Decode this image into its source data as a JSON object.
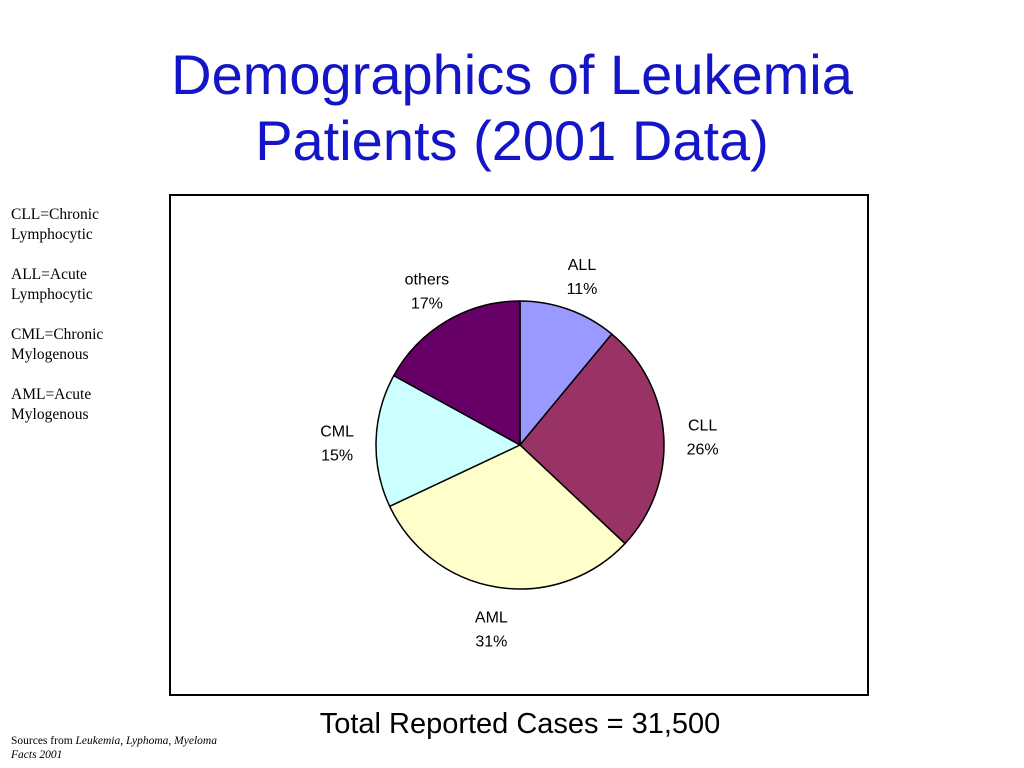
{
  "slide": {
    "title_line1": "Demographics of Leukemia",
    "title_line2": "Patients (2001 Data)"
  },
  "glossary": [
    {
      "line1": "CLL=Chronic",
      "line2": "Lymphocytic"
    },
    {
      "line1": "ALL=Acute",
      "line2": "Lymphocytic"
    },
    {
      "line1": "CML=Chronic",
      "line2": "Mylogenous"
    },
    {
      "line1": "AML=Acute",
      "line2": "Mylogenous"
    }
  ],
  "total_text": "Total Reported Cases = 31,500",
  "sources": {
    "prefix": "Sources from ",
    "citation": "Leukemia, Lyphoma, Myeloma Facts 2001"
  },
  "chart_data": {
    "type": "pie",
    "categories": [
      "ALL",
      "CLL",
      "AML",
      "CML",
      "others"
    ],
    "values": [
      11,
      26,
      31,
      15,
      17
    ],
    "value_labels": [
      "11%",
      "26%",
      "31%",
      "15%",
      "17%"
    ],
    "colors": [
      "#9999ff",
      "#993366",
      "#ffffcc",
      "#ccffff",
      "#660066"
    ],
    "start_angle_deg": 0,
    "direction": "clockwise",
    "border": true
  }
}
